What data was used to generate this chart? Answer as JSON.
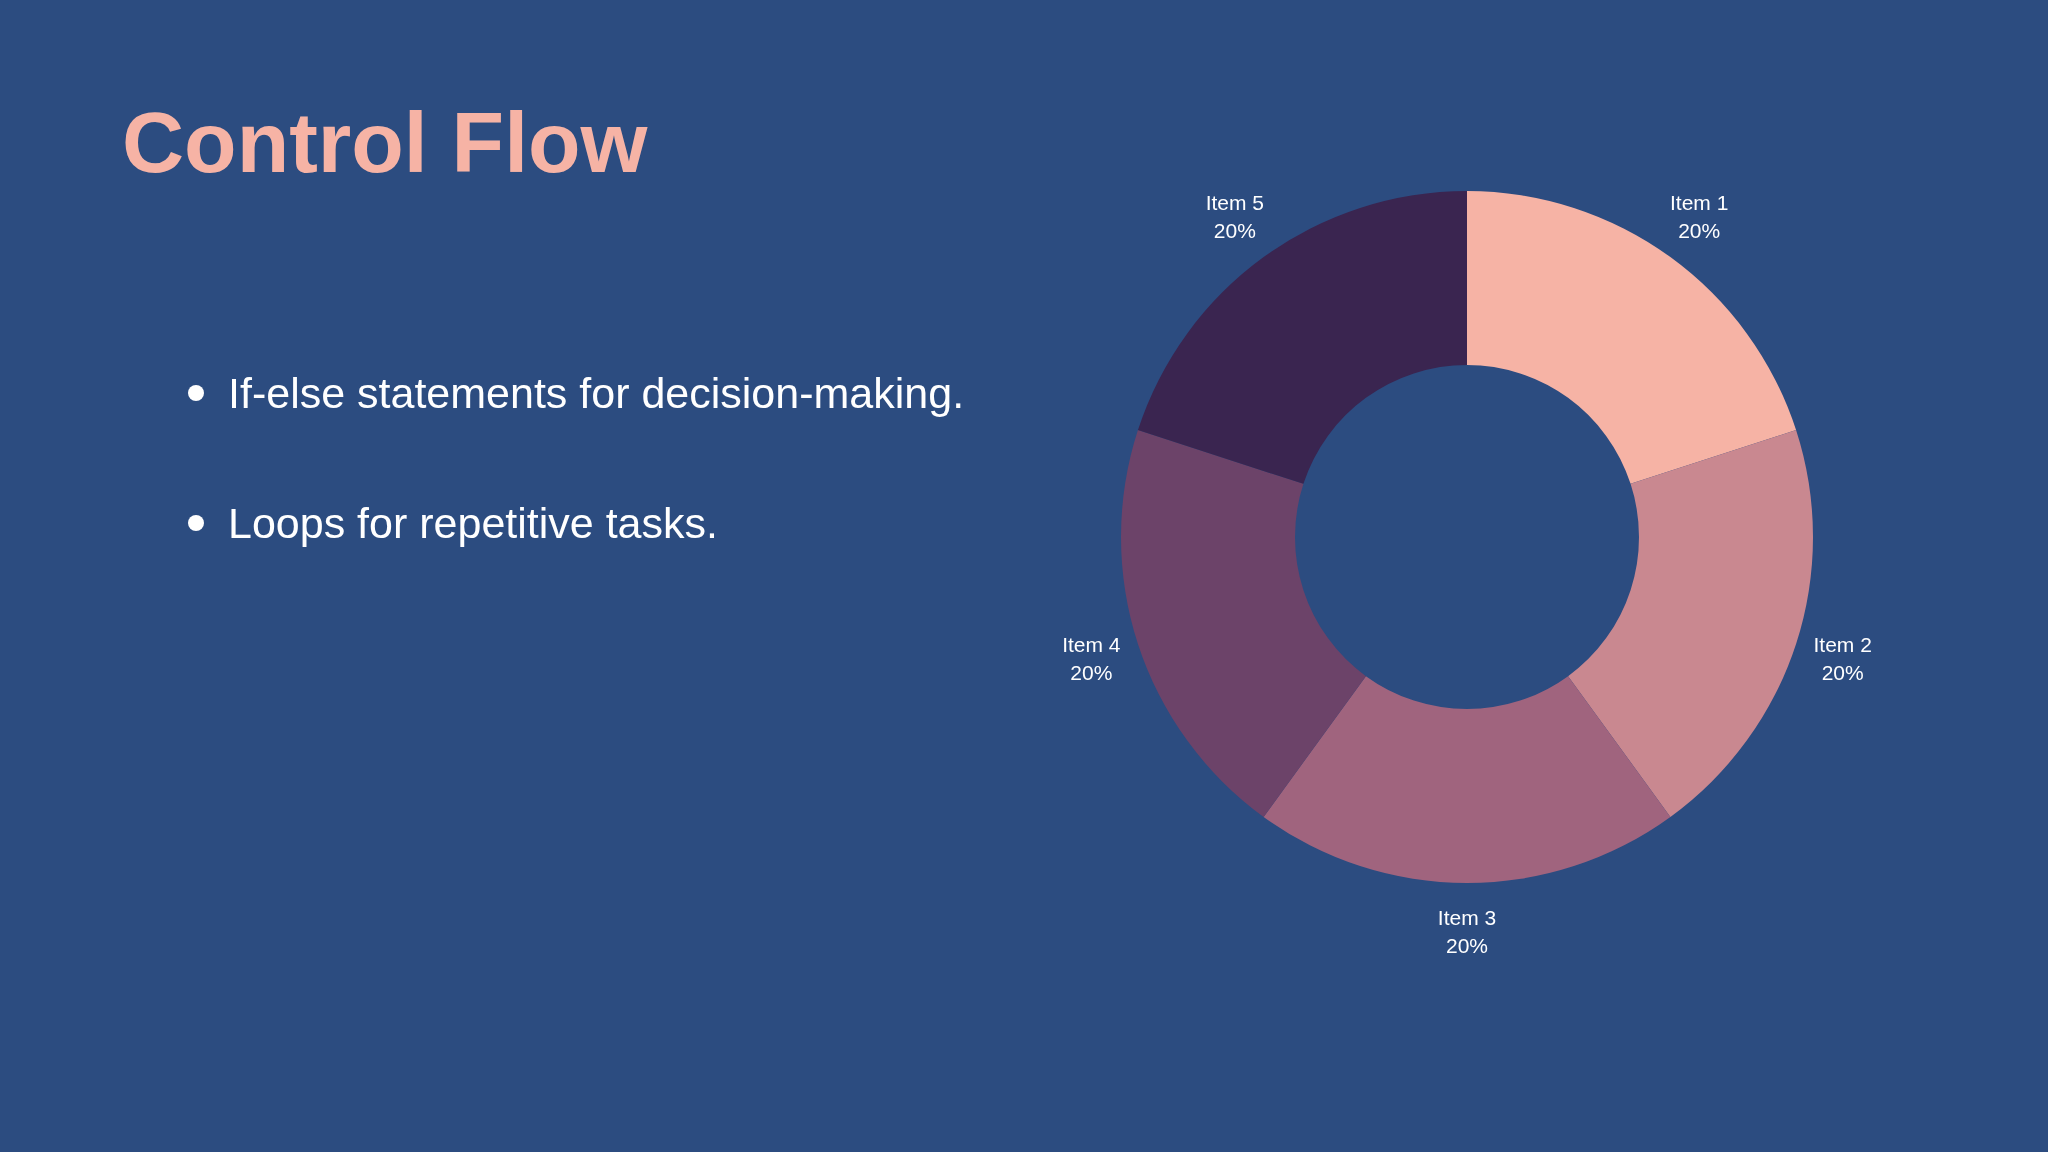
{
  "chart_data": {
    "type": "donut",
    "title": "Control Flow",
    "annotations": [
      "If-else statements for decision-making.",
      "Loops for repetitive tasks."
    ],
    "categories": [
      "Item 1",
      "Item 2",
      "Item 3",
      "Item 4",
      "Item 5"
    ],
    "values": [
      20,
      20,
      20,
      20,
      20
    ],
    "value_labels": [
      "20%",
      "20%",
      "20%",
      "20%",
      "20%"
    ],
    "colors": [
      "#f6b3a5",
      "#c98890",
      "#a0647e",
      "#6c4369",
      "#3a2550"
    ]
  }
}
